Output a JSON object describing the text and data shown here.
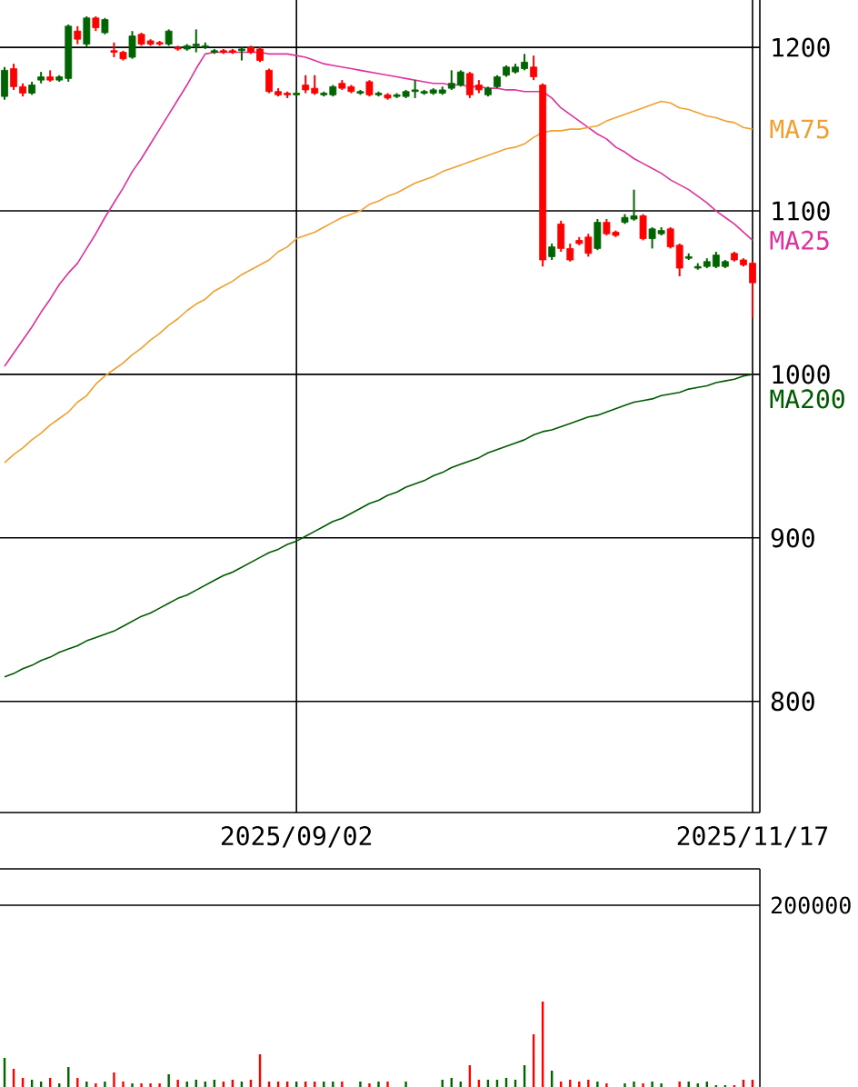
{
  "chart_data": [
    {
      "type": "candlestick",
      "categories": [
        null,
        null,
        null,
        null,
        null,
        null,
        null,
        null,
        null,
        null,
        null,
        null,
        null,
        null,
        null,
        null,
        null,
        null,
        null,
        null,
        null,
        null,
        null,
        null,
        null,
        null,
        null,
        null,
        null,
        null,
        null,
        null,
        "2025/09/02",
        null,
        null,
        null,
        null,
        null,
        null,
        null,
        null,
        null,
        null,
        null,
        null,
        null,
        null,
        null,
        null,
        null,
        null,
        null,
        null,
        null,
        null,
        null,
        null,
        null,
        null,
        null,
        null,
        null,
        null,
        null,
        null,
        null,
        null,
        null,
        null,
        null,
        null,
        null,
        null,
        null,
        null,
        null,
        null,
        null,
        null,
        null,
        null,
        null,
        "2025/11/17"
      ],
      "ohlc": [
        [
          1170,
          1188,
          1168,
          1186
        ],
        [
          1187,
          1190,
          1174,
          1176
        ],
        [
          1176,
          1178,
          1170,
          1172
        ],
        [
          1172,
          1179,
          1171,
          1177
        ],
        [
          1180,
          1185,
          1178,
          1182
        ],
        [
          1182,
          1186,
          1179,
          1180
        ],
        [
          1180,
          1183,
          1179,
          1182
        ],
        [
          1181,
          1214,
          1179,
          1213
        ],
        [
          1210,
          1213,
          1202,
          1205
        ],
        [
          1202,
          1219,
          1200,
          1218
        ],
        [
          1218,
          1219,
          1210,
          1212
        ],
        [
          1209,
          1218,
          1208,
          1217
        ],
        [
          1198,
          1203,
          1194,
          1197
        ],
        [
          1197,
          1198,
          1192,
          1193
        ],
        [
          1194,
          1210,
          1193,
          1207
        ],
        [
          1208,
          1209,
          1201,
          1202
        ],
        [
          1204,
          1205,
          1201,
          1202
        ],
        [
          1203,
          1204,
          1201,
          1202
        ],
        [
          1202,
          1211,
          1201,
          1210
        ],
        [
          1200,
          1201,
          1198,
          1199
        ],
        [
          1199,
          1202,
          1198,
          1201
        ],
        [
          1201,
          1211,
          1197,
          1202
        ],
        [
          1200,
          1203,
          1199,
          1201
        ],
        [
          1197,
          1199,
          1196,
          1198
        ],
        [
          1198,
          1199,
          1196,
          1197
        ],
        [
          1198,
          1199,
          1196,
          1197
        ],
        [
          1198,
          1200,
          1192,
          1199
        ],
        [
          1200,
          1201,
          1196,
          1197
        ],
        [
          1199,
          1200,
          1191,
          1192
        ],
        [
          1186,
          1187,
          1172,
          1173
        ],
        [
          1173,
          1175,
          1170,
          1171
        ],
        [
          1172,
          1173,
          1169,
          1171
        ],
        [
          1171,
          1174,
          1170,
          1172
        ],
        [
          1177,
          1183,
          1172,
          1174
        ],
        [
          1175,
          1183,
          1171,
          1172
        ],
        [
          1171,
          1173,
          1170,
          1172
        ],
        [
          1171,
          1177,
          1170,
          1176
        ],
        [
          1178,
          1180,
          1174,
          1175
        ],
        [
          1176,
          1177,
          1172,
          1173
        ],
        [
          1172,
          1174,
          1171,
          1173
        ],
        [
          1179,
          1180,
          1170,
          1171
        ],
        [
          1171,
          1173,
          1170,
          1172
        ],
        [
          1171,
          1172,
          1168,
          1169
        ],
        [
          1170,
          1172,
          1169,
          1171
        ],
        [
          1170,
          1174,
          1169,
          1173
        ],
        [
          1173,
          1180,
          1169,
          1174
        ],
        [
          1172,
          1174,
          1171,
          1173
        ],
        [
          1172,
          1175,
          1171,
          1174
        ],
        [
          1172,
          1176,
          1171,
          1174
        ],
        [
          1175,
          1186,
          1174,
          1178
        ],
        [
          1177,
          1186,
          1176,
          1185
        ],
        [
          1184,
          1185,
          1169,
          1171
        ],
        [
          1177,
          1180,
          1172,
          1174
        ],
        [
          1171,
          1176,
          1170,
          1175
        ],
        [
          1176,
          1183,
          1175,
          1182
        ],
        [
          1183,
          1189,
          1182,
          1188
        ],
        [
          1185,
          1190,
          1184,
          1188
        ],
        [
          1187,
          1196,
          1186,
          1191
        ],
        [
          1188,
          1195,
          1180,
          1182
        ],
        [
          1177,
          1178,
          1066,
          1070
        ],
        [
          1072,
          1080,
          1070,
          1078
        ],
        [
          1092,
          1094,
          1075,
          1077
        ],
        [
          1077,
          1080,
          1069,
          1070
        ],
        [
          1082,
          1084,
          1079,
          1080
        ],
        [
          1084,
          1086,
          1072,
          1074
        ],
        [
          1077,
          1095,
          1076,
          1093
        ],
        [
          1093,
          1095,
          1085,
          1086
        ],
        [
          1087,
          1088,
          1084,
          1085
        ],
        [
          1093,
          1098,
          1092,
          1096
        ],
        [
          1095,
          1113,
          1094,
          1097
        ],
        [
          1097,
          1098,
          1082,
          1083
        ],
        [
          1083,
          1090,
          1077,
          1089
        ],
        [
          1086,
          1090,
          1085,
          1088
        ],
        [
          1089,
          1090,
          1077,
          1078
        ],
        [
          1079,
          1080,
          1060,
          1065
        ],
        [
          1071,
          1074,
          1070,
          1072
        ],
        [
          1065,
          1068,
          1064,
          1066
        ],
        [
          1066,
          1071,
          1065,
          1069
        ],
        [
          1066,
          1075,
          1065,
          1073
        ],
        [
          1066,
          1070,
          1065,
          1069
        ],
        [
          1074,
          1075,
          1069,
          1070
        ],
        [
          1070,
          1071,
          1066,
          1067
        ],
        [
          1068,
          1069,
          1035,
          1056
        ]
      ],
      "colors": [
        "#006400",
        "#ff0000",
        "#ff0000",
        "#006400",
        "#006400",
        "#ff0000",
        "#006400",
        "#006400",
        "#ff0000",
        "#006400",
        "#ff0000",
        "#006400",
        "#ff0000",
        "#ff0000",
        "#006400",
        "#ff0000",
        "#ff0000",
        "#ff0000",
        "#006400",
        "#ff0000",
        "#006400",
        "#006400",
        "#006400",
        "#006400",
        "#ff0000",
        "#ff0000",
        "#006400",
        "#ff0000",
        "#ff0000",
        "#ff0000",
        "#ff0000",
        "#ff0000",
        "#006400",
        "#ff0000",
        "#ff0000",
        "#006400",
        "#006400",
        "#ff0000",
        "#ff0000",
        "#006400",
        "#ff0000",
        "#006400",
        "#ff0000",
        "#006400",
        "#006400",
        "#006400",
        "#006400",
        "#006400",
        "#006400",
        "#006400",
        "#006400",
        "#ff0000",
        "#ff0000",
        "#006400",
        "#006400",
        "#006400",
        "#006400",
        "#006400",
        "#ff0000",
        "#ff0000",
        "#006400",
        "#ff0000",
        "#ff0000",
        "#ff0000",
        "#ff0000",
        "#006400",
        "#ff0000",
        "#ff0000",
        "#006400",
        "#006400",
        "#ff0000",
        "#006400",
        "#006400",
        "#ff0000",
        "#ff0000",
        "#006400",
        "#006400",
        "#006400",
        "#006400",
        "#006400",
        "#ff0000",
        "#ff0000",
        "#ff0000"
      ],
      "series": [
        {
          "name": "MA25",
          "type": "line",
          "color": "#e0309f",
          "values": [
            1005,
            1013,
            1021,
            1029,
            1038,
            1046,
            1055,
            1062,
            1068,
            1077,
            1086,
            1096,
            1105,
            1114,
            1124,
            1132,
            1141,
            1150,
            1159,
            1168,
            1177,
            1187,
            1196,
            1197,
            1197,
            1197,
            1197,
            1197,
            1197,
            1196,
            1196,
            1196,
            1195,
            1194,
            1192,
            1190,
            1189,
            1188,
            1187,
            1186,
            1185,
            1184,
            1183,
            1182,
            1181,
            1180,
            1179,
            1178,
            1178,
            1177,
            1177,
            1176,
            1176,
            1175,
            1175,
            1174,
            1174,
            1173,
            1173,
            1173,
            1169,
            1163,
            1159,
            1155,
            1151,
            1147,
            1144,
            1139,
            1136,
            1132,
            1129,
            1126,
            1123,
            1119,
            1116,
            1113,
            1109,
            1105,
            1100,
            1096,
            1092,
            1087,
            1082
          ]
        },
        {
          "name": "MA75",
          "type": "line",
          "color": "#f0a030",
          "values": [
            946,
            951,
            955,
            960,
            964,
            969,
            973,
            977,
            983,
            987,
            994,
            999,
            1003,
            1007,
            1012,
            1016,
            1021,
            1025,
            1030,
            1034,
            1039,
            1043,
            1046,
            1051,
            1054,
            1057,
            1061,
            1064,
            1067,
            1070,
            1075,
            1078,
            1083,
            1085,
            1087,
            1090,
            1093,
            1096,
            1098,
            1100,
            1104,
            1106,
            1109,
            1111,
            1114,
            1117,
            1119,
            1121,
            1124,
            1126,
            1128,
            1130,
            1132,
            1134,
            1136,
            1138,
            1139,
            1141,
            1145,
            1148,
            1149,
            1149,
            1150,
            1150,
            1151,
            1152,
            1155,
            1157,
            1159,
            1161,
            1163,
            1165,
            1167,
            1166,
            1163,
            1162,
            1160,
            1158,
            1157,
            1155,
            1154,
            1151,
            1150
          ]
        },
        {
          "name": "MA200",
          "type": "line",
          "color": "#005a00",
          "values": [
            815,
            817,
            820,
            822,
            825,
            827,
            830,
            832,
            834,
            837,
            839,
            841,
            843,
            846,
            849,
            852,
            854,
            857,
            860,
            863,
            865,
            868,
            871,
            874,
            877,
            879,
            882,
            885,
            888,
            891,
            893,
            896,
            898,
            901,
            904,
            907,
            910,
            912,
            915,
            918,
            921,
            923,
            926,
            928,
            931,
            933,
            935,
            938,
            940,
            943,
            945,
            947,
            949,
            952,
            954,
            956,
            958,
            960,
            963,
            965,
            966,
            968,
            970,
            972,
            974,
            975,
            977,
            979,
            981,
            983,
            984,
            985,
            987,
            988,
            989,
            991,
            992,
            993,
            995,
            996,
            997,
            999,
            1000
          ]
        }
      ],
      "ylim": [
        732,
        1229
      ],
      "yticks": [
        800,
        900,
        1000,
        1100,
        1200
      ],
      "grid": true
    },
    {
      "type": "bar",
      "categories": [
        null,
        null,
        null,
        null,
        null,
        null,
        null,
        null,
        null,
        null,
        null,
        null,
        null,
        null,
        null,
        null,
        null,
        null,
        null,
        null,
        null,
        null,
        null,
        null,
        null,
        null,
        null,
        null,
        null,
        null,
        null,
        null,
        null,
        null,
        null,
        null,
        null,
        null,
        null,
        null,
        null,
        null,
        null,
        null,
        null,
        null,
        null,
        null,
        null,
        null,
        null,
        null,
        null,
        null,
        null,
        null,
        null,
        null,
        null,
        null,
        null,
        null,
        null,
        null,
        null,
        null,
        null,
        null,
        null,
        null,
        null,
        null,
        null,
        null,
        null,
        null,
        null,
        null,
        null,
        null,
        null,
        null,
        null
      ],
      "values": [
        32000,
        20000,
        10000,
        8000,
        6000,
        10000,
        4000,
        22000,
        10000,
        6000,
        4000,
        6000,
        16000,
        6000,
        4000,
        4000,
        4000,
        4000,
        14000,
        8000,
        6000,
        8000,
        6000,
        8000,
        6000,
        8000,
        6000,
        8000,
        36000,
        6000,
        6000,
        6000,
        6000,
        6000,
        6000,
        6000,
        6000,
        6000,
        null,
        6000,
        4000,
        6000,
        6000,
        null,
        6000,
        null,
        null,
        null,
        8000,
        10000,
        6000,
        24000,
        8000,
        8000,
        8000,
        10000,
        8000,
        24000,
        58000,
        94000,
        18000,
        6000,
        8000,
        6000,
        8000,
        6000,
        4000,
        null,
        4000,
        6000,
        4000,
        6000,
        4000,
        null,
        6000,
        6000,
        4000,
        6000,
        2000,
        2000,
        2000,
        8000,
        8000
      ],
      "colors": [
        "#006400",
        "#ff0000",
        "#ff0000",
        "#006400",
        "#006400",
        "#ff0000",
        "#006400",
        "#006400",
        "#ff0000",
        "#006400",
        "#ff0000",
        "#006400",
        "#ff0000",
        "#ff0000",
        "#006400",
        "#ff0000",
        "#ff0000",
        "#ff0000",
        "#006400",
        "#ff0000",
        "#006400",
        "#006400",
        "#006400",
        "#006400",
        "#ff0000",
        "#ff0000",
        "#006400",
        "#ff0000",
        "#ff0000",
        "#ff0000",
        "#ff0000",
        "#ff0000",
        "#006400",
        "#ff0000",
        "#ff0000",
        "#006400",
        "#006400",
        "#ff0000",
        "#ff0000",
        "#006400",
        "#ff0000",
        "#006400",
        "#ff0000",
        "#006400",
        "#006400",
        "#006400",
        "#006400",
        "#006400",
        "#006400",
        "#006400",
        "#006400",
        "#ff0000",
        "#ff0000",
        "#006400",
        "#006400",
        "#006400",
        "#006400",
        "#006400",
        "#ff0000",
        "#ff0000",
        "#006400",
        "#ff0000",
        "#ff0000",
        "#ff0000",
        "#ff0000",
        "#006400",
        "#ff0000",
        "#ff0000",
        "#006400",
        "#006400",
        "#ff0000",
        "#006400",
        "#006400",
        "#ff0000",
        "#ff0000",
        "#006400",
        "#006400",
        "#006400",
        "#006400",
        "#006400",
        "#ff0000",
        "#ff0000",
        "#ff0000"
      ],
      "ylim": [
        0,
        240000
      ],
      "yticks": [
        200000
      ],
      "grid": "y",
      "tick_labels": "y"
    }
  ]
}
